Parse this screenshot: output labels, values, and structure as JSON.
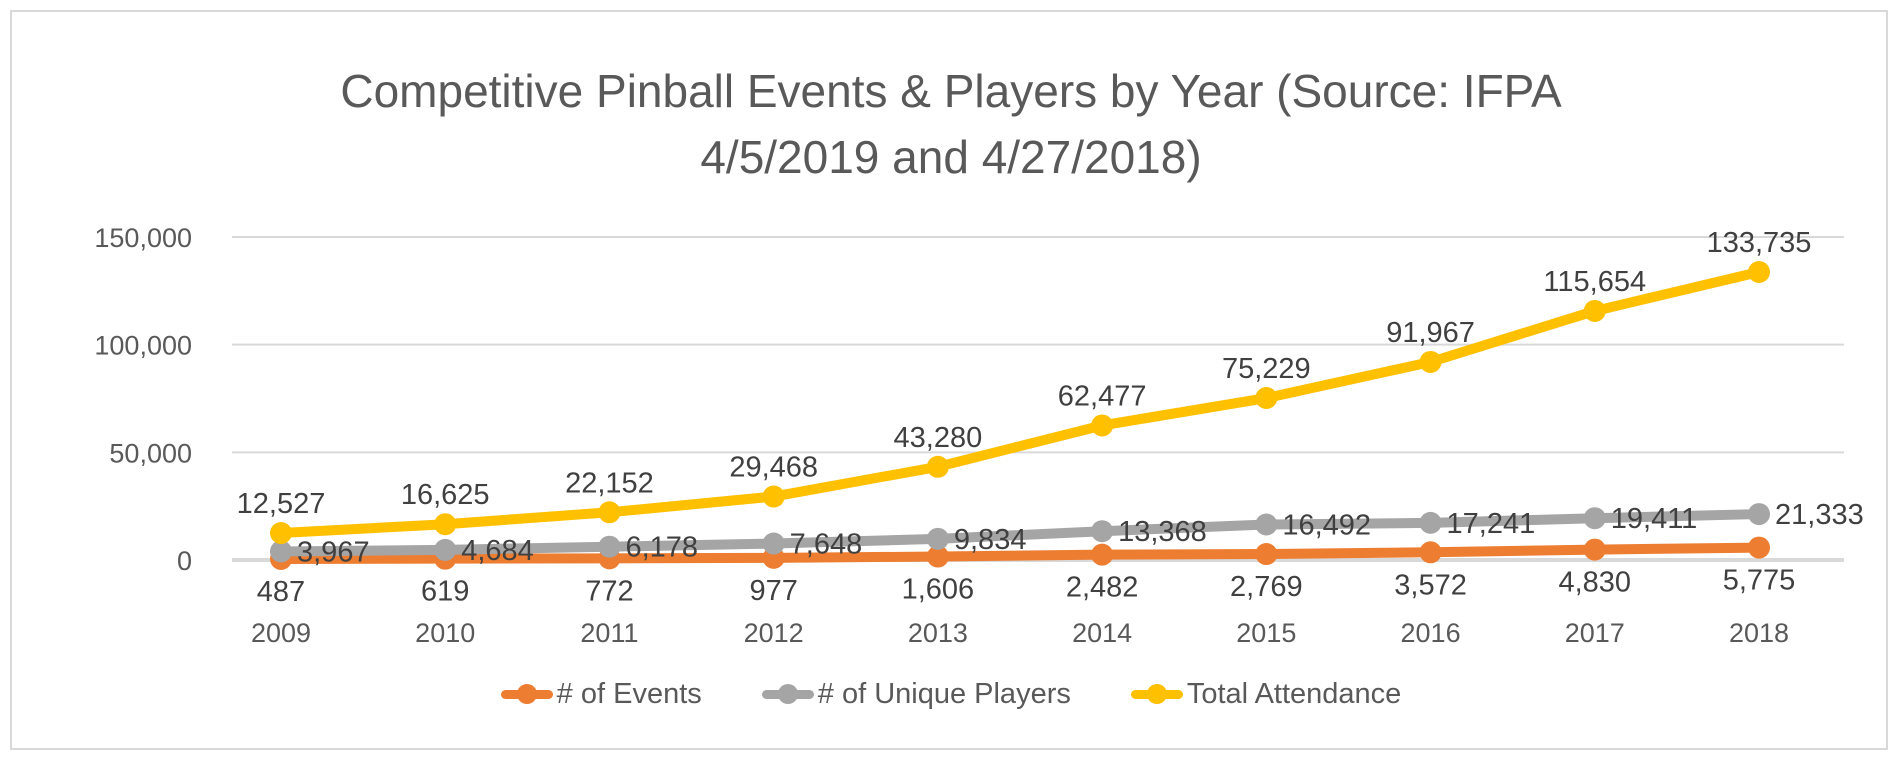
{
  "chart_data": {
    "type": "line",
    "title": "Competitive Pinball Events & Players by Year (Source: IFPA 4/5/2019 and 4/27/2018)",
    "title_lines": [
      "Competitive Pinball Events & Players by Year (Source: IFPA",
      "4/5/2019 and 4/27/2018)"
    ],
    "xlabel": "",
    "ylabel": "",
    "categories": [
      "2009",
      "2010",
      "2011",
      "2012",
      "2013",
      "2014",
      "2015",
      "2016",
      "2017",
      "2018"
    ],
    "ylim": [
      0,
      150000
    ],
    "yticks": [
      0,
      50000,
      100000,
      150000
    ],
    "ytick_labels": [
      "0",
      "50,000",
      "100,000",
      "150,000"
    ],
    "grid": "horizontal",
    "legend_position": "bottom",
    "series": [
      {
        "name": "# of Events",
        "color": "#ED7D31",
        "values": [
          487,
          619,
          772,
          977,
          1606,
          2482,
          2769,
          3572,
          4830,
          5775
        ],
        "labels": [
          "487",
          "619",
          "772",
          "977",
          "1,606",
          "2,482",
          "2,769",
          "3,572",
          "4,830",
          "5,775"
        ]
      },
      {
        "name": "# of Unique Players",
        "color": "#A5A5A5",
        "values": [
          3967,
          4684,
          6178,
          7648,
          9834,
          13368,
          16492,
          17241,
          19411,
          21333
        ],
        "labels": [
          "3,967",
          "4,684",
          "6,178",
          "7,648",
          "9,834",
          "13,368",
          "16,492",
          "17,241",
          "19,411",
          "21,333"
        ]
      },
      {
        "name": "Total Attendance",
        "color": "#FFC000",
        "values": [
          12527,
          16625,
          22152,
          29468,
          43280,
          62477,
          75229,
          91967,
          115654,
          133735
        ],
        "labels": [
          "12,527",
          "16,625",
          "22,152",
          "29,468",
          "43,280",
          "62,477",
          "75,229",
          "91,967",
          "115,654",
          "133,735"
        ]
      }
    ]
  }
}
